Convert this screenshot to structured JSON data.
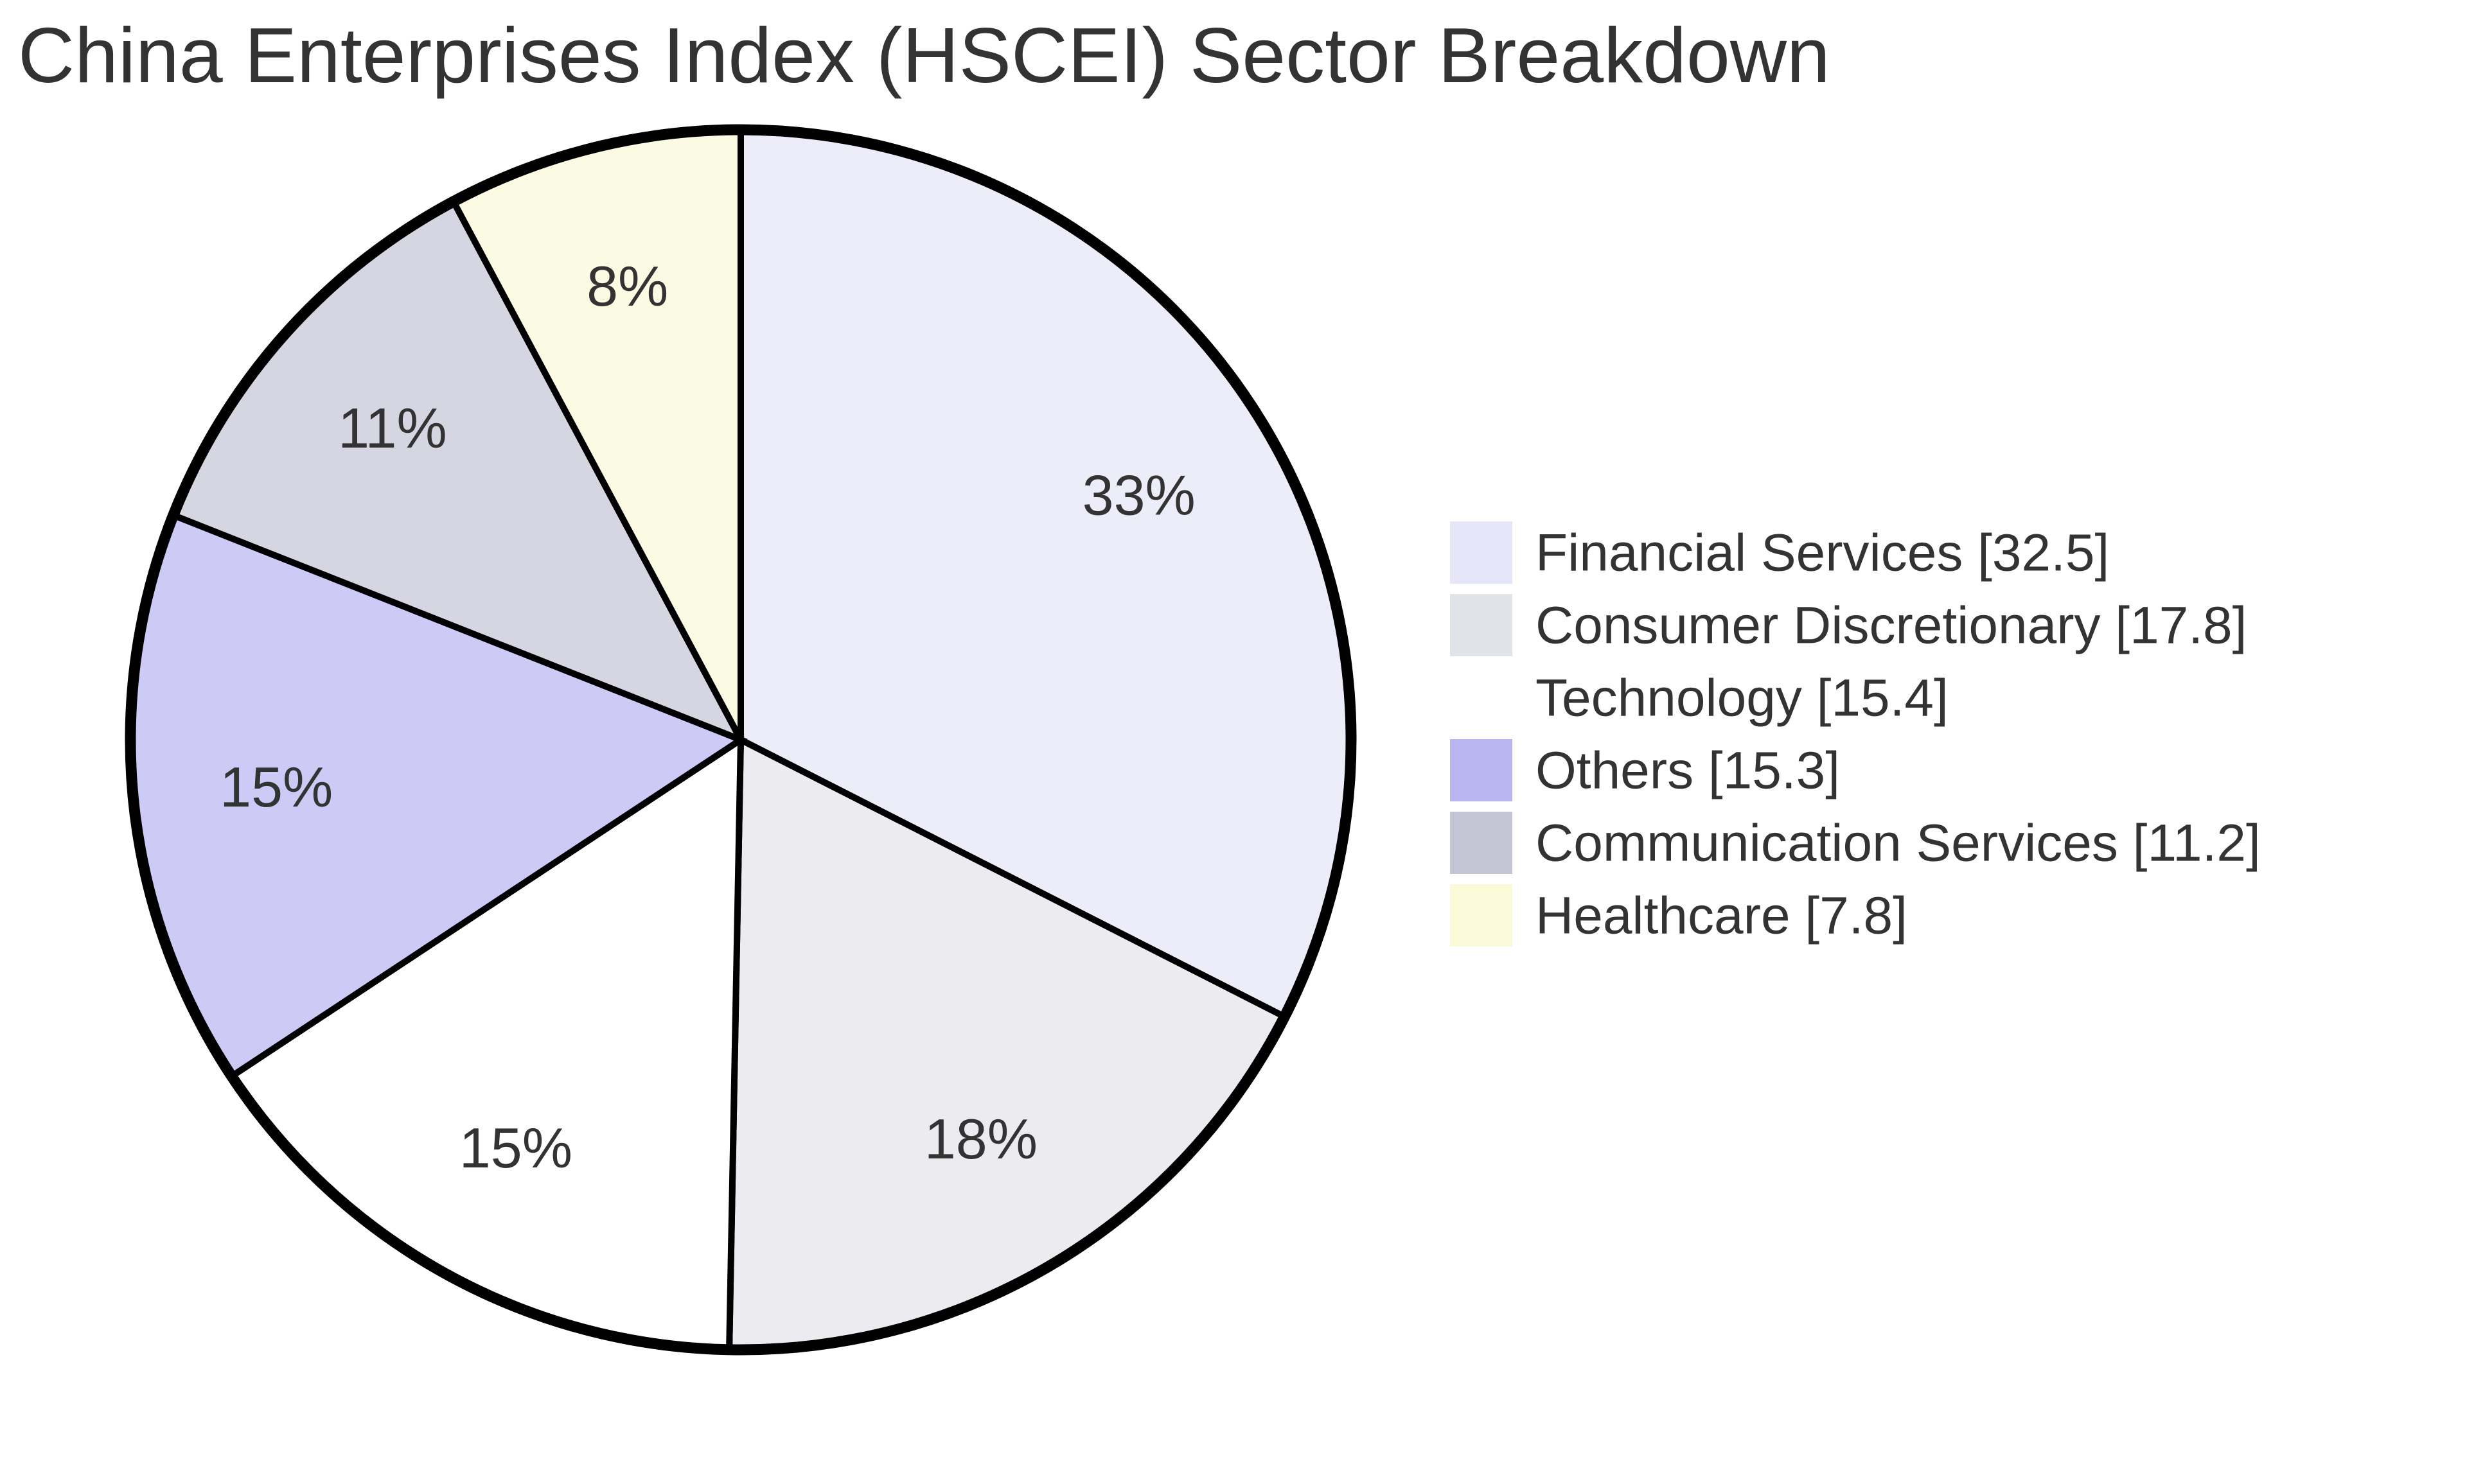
{
  "chart_data": {
    "type": "pie",
    "title": "China Enterprises Index (HSCEI) Sector Breakdown",
    "total": 100.0,
    "start_angle_deg": 0,
    "direction": "clockwise",
    "legend_position": "right",
    "grid": false,
    "slice_fill_opacity": 0.7,
    "stroke_color": "#000000",
    "label_color": "#333333",
    "title_color": "#333333",
    "background_color": "#ffffff",
    "series": [
      {
        "label": "Financial Services",
        "value": 32.5,
        "percent_label": "33%",
        "color": "#e6e6f8",
        "legend_label": "Financial Services [32.5]"
      },
      {
        "label": "Consumer Discretionary",
        "value": 17.8,
        "percent_label": "18%",
        "color": "#e2e2e9",
        "legend_label": "Consumer Discretionary [17.8]"
      },
      {
        "label": "Technology",
        "value": 15.4,
        "percent_label": "15%",
        "color": "#ffffff",
        "legend_label": "Technology [15.4]"
      },
      {
        "label": "Others",
        "value": 15.3,
        "percent_label": "15%",
        "color": "#b8b5f2",
        "legend_label": "Others [15.3]"
      },
      {
        "label": "Communication Services",
        "value": 11.2,
        "percent_label": "11%",
        "color": "#c5c4d5",
        "legend_label": "Communication Services [11.2]"
      },
      {
        "label": "Healthcare",
        "value": 7.8,
        "percent_label": "8%",
        "color": "#fafad8",
        "legend_label": "Healthcare [7.8]"
      }
    ]
  }
}
